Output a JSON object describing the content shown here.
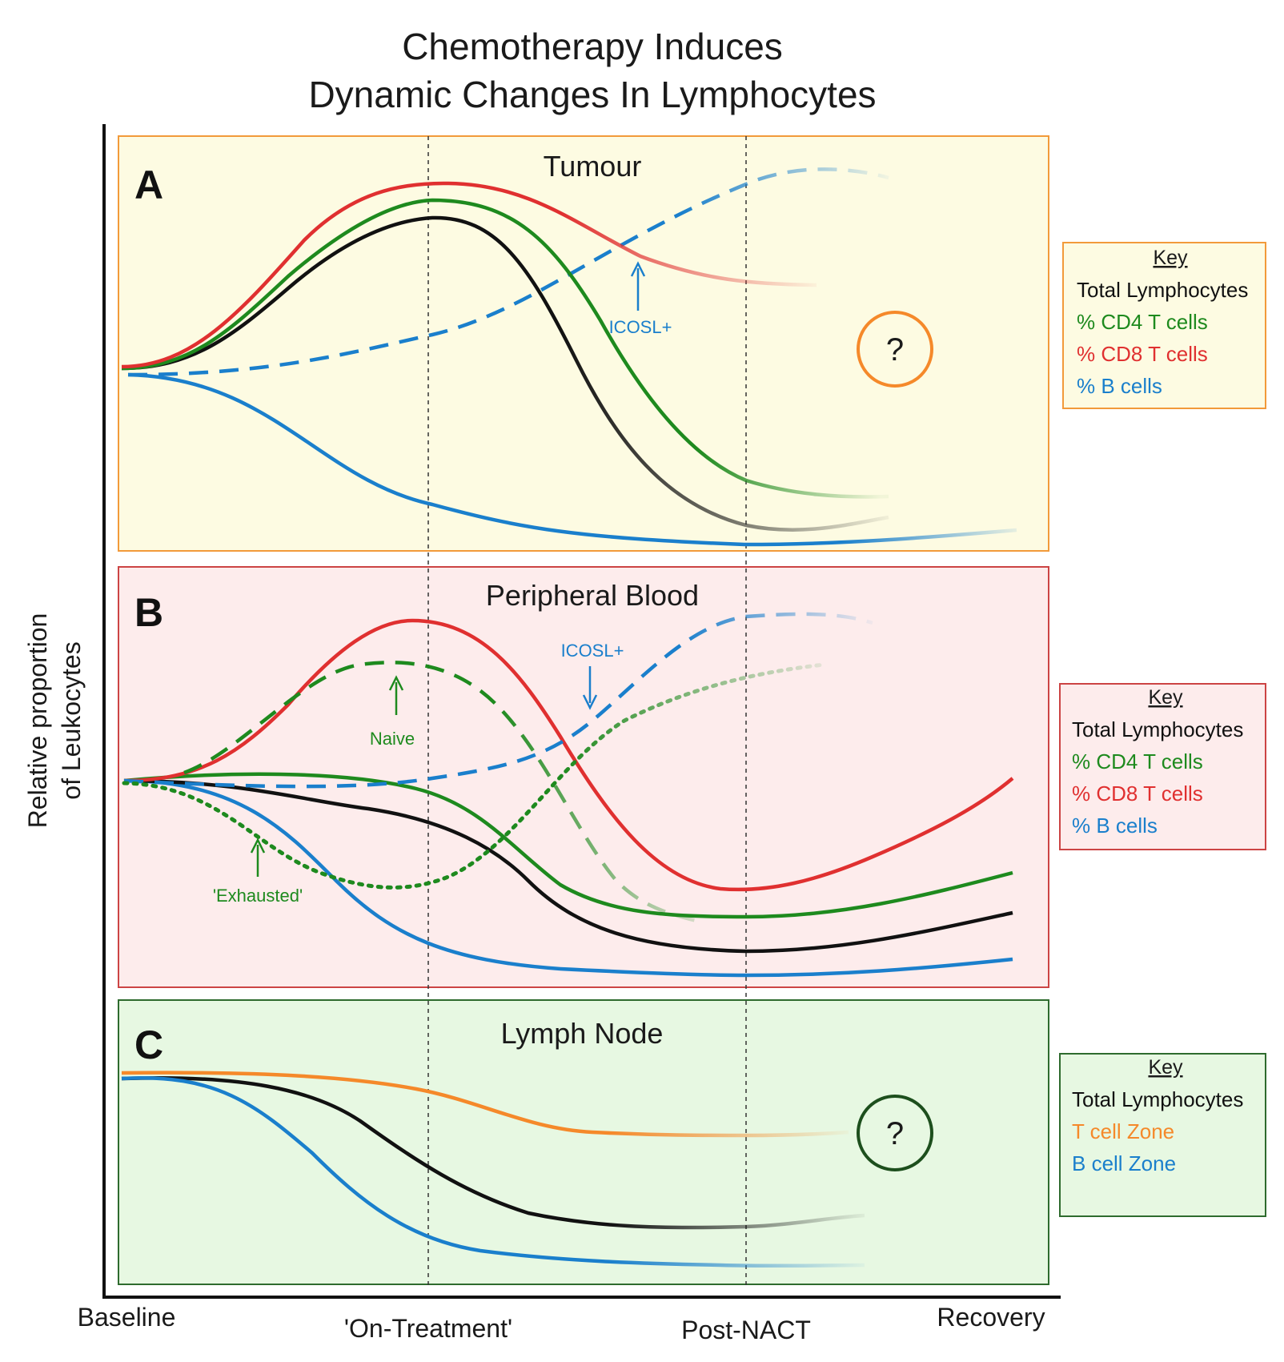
{
  "title": {
    "line1": "Chemotherapy Induces",
    "line2": "Dynamic Changes In Lymphocytes"
  },
  "y_axis_label": {
    "line1": "Relative proportion",
    "line2": "of Leukocytes"
  },
  "x_axis_labels": [
    "Baseline",
    "'On-Treatment'",
    "Post-NACT",
    "Recovery"
  ],
  "colors": {
    "total": "#111111",
    "cd4": "#1e8a1e",
    "cd8": "#e03030",
    "bcell": "#1a7fcc",
    "tzone": "#f5892a",
    "panelA_bg": "#fdfbe2",
    "panelA_border": "#f29a3a",
    "panelB_bg": "#fdecec",
    "panelB_border": "#cc4444",
    "panelC_bg": "#e7f8e2",
    "panelC_border": "#2e6b2e",
    "circleA": "#f5892a",
    "circleC": "#1d4f1d"
  },
  "panels": {
    "A": {
      "letter": "A",
      "title": "Tumour",
      "annotations": {
        "icosl": "ICOSL+"
      },
      "question": "?",
      "key": {
        "heading": "Key",
        "items": [
          "Total Lymphocytes",
          "% CD4 T cells",
          "% CD8 T cells",
          "% B cells"
        ]
      }
    },
    "B": {
      "letter": "B",
      "title": "Peripheral Blood",
      "annotations": {
        "icosl": "ICOSL+",
        "naive": "Naive",
        "exhausted": "'Exhausted'"
      },
      "key": {
        "heading": "Key",
        "items": [
          "Total Lymphocytes",
          "% CD4 T cells",
          "% CD8 T cells",
          "% B cells"
        ]
      }
    },
    "C": {
      "letter": "C",
      "title": "Lymph Node",
      "question": "?",
      "key": {
        "heading": "Key",
        "items": [
          "Total Lymphocytes",
          "T cell Zone",
          "B cell Zone"
        ]
      }
    }
  }
}
